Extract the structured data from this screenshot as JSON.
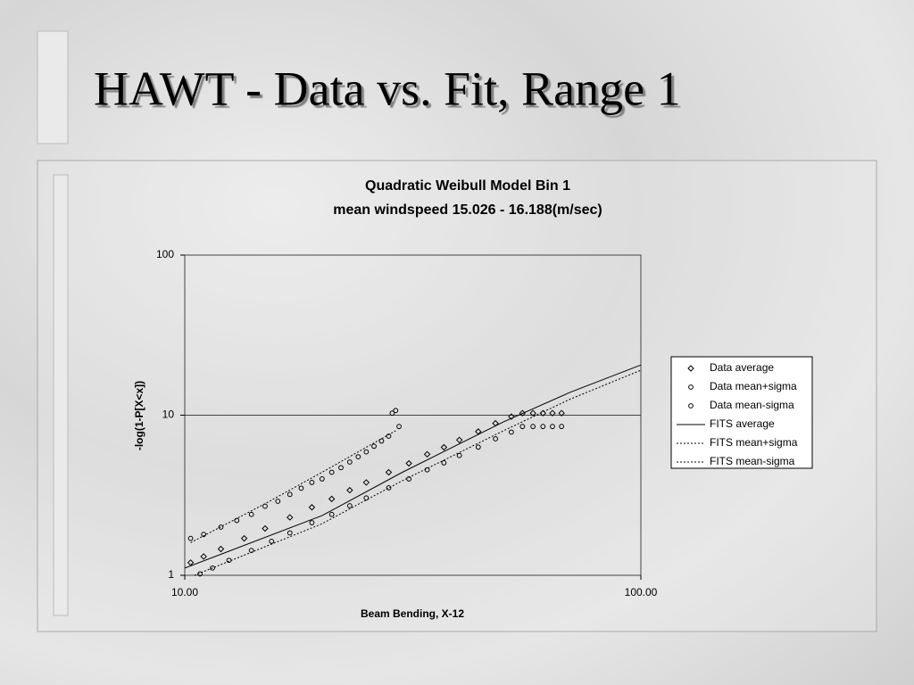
{
  "slide_title": "HAWT - Data vs. Fit, Range 1",
  "chart_data": {
    "type": "scatter",
    "title": "Quadratic Weibull Model Bin 1",
    "subtitle": "mean windspeed 15.026 - 16.188(m/sec)",
    "x_label": "Beam Bending, X-12",
    "y_label": "-log(1-P[X<x])",
    "xscale": "log",
    "yscale": "log",
    "xlim": [
      10,
      100
    ],
    "ylim": [
      1,
      100
    ],
    "xticks": [
      {
        "value": 10,
        "label": "10.00"
      },
      {
        "value": 100,
        "label": "100.00"
      }
    ],
    "yticks": [
      1,
      10,
      100
    ],
    "grid": true,
    "legend": "right",
    "series": [
      {
        "name": "Data average",
        "marker": "diamond",
        "color": "#000000",
        "x": [
          10.3,
          11,
          12,
          13.5,
          15,
          17,
          19,
          21,
          23,
          25,
          28,
          31,
          34,
          37,
          40,
          44,
          48,
          52,
          55,
          58,
          61,
          64,
          67
        ],
        "values": [
          1.2,
          1.31,
          1.46,
          1.7,
          1.96,
          2.3,
          2.66,
          3.0,
          3.4,
          3.8,
          4.4,
          5.0,
          5.7,
          6.3,
          7.0,
          7.9,
          8.9,
          9.8,
          10.3,
          10.3,
          10.3,
          10.3,
          10.3
        ]
      },
      {
        "name": "Data mean+sigma",
        "marker": "circle",
        "color": "#000000",
        "x": [
          10.3,
          11,
          12,
          13,
          14,
          15,
          16,
          17,
          18,
          19,
          20,
          21,
          22,
          23,
          24,
          25,
          26,
          27,
          28,
          28.5,
          29,
          29.5
        ],
        "values": [
          1.7,
          1.8,
          2.0,
          2.2,
          2.4,
          2.7,
          2.9,
          3.2,
          3.5,
          3.8,
          4.0,
          4.4,
          4.7,
          5.1,
          5.5,
          5.9,
          6.4,
          6.9,
          7.4,
          10.3,
          10.7,
          8.5
        ]
      },
      {
        "name": "Data mean-sigma",
        "marker": "circle",
        "color": "#000000",
        "x": [
          10.8,
          11.5,
          12.5,
          14,
          15.5,
          17,
          19,
          21,
          23,
          25,
          28,
          31,
          34,
          37,
          40,
          44,
          48,
          52,
          55,
          58,
          61,
          64,
          67
        ],
        "values": [
          1.02,
          1.11,
          1.24,
          1.43,
          1.63,
          1.84,
          2.13,
          2.4,
          2.72,
          3.04,
          3.52,
          4.0,
          4.56,
          5.04,
          5.6,
          6.32,
          7.12,
          7.84,
          8.5,
          8.5,
          8.5,
          8.5,
          8.5
        ]
      },
      {
        "name": "FITS average",
        "line_style": "solid",
        "color": "#000000",
        "x": [
          10,
          20,
          30,
          50,
          70,
          100
        ],
        "values": [
          1.11,
          2.36,
          4.4,
          9.1,
          13.9,
          20.6
        ]
      },
      {
        "name": "FITS mean+sigma",
        "line_style": "dotted",
        "color": "#000000",
        "x": [
          10.3,
          15,
          20,
          25,
          29
        ],
        "values": [
          1.6,
          2.8,
          4.4,
          6.3,
          8.0
        ]
      },
      {
        "name": "FITS mean-sigma",
        "line_style": "dotted",
        "color": "#000000",
        "x": [
          10.5,
          20,
          30,
          50,
          70,
          100
        ],
        "values": [
          1.0,
          2.1,
          3.9,
          8.0,
          12.6,
          19.1
        ]
      }
    ]
  }
}
